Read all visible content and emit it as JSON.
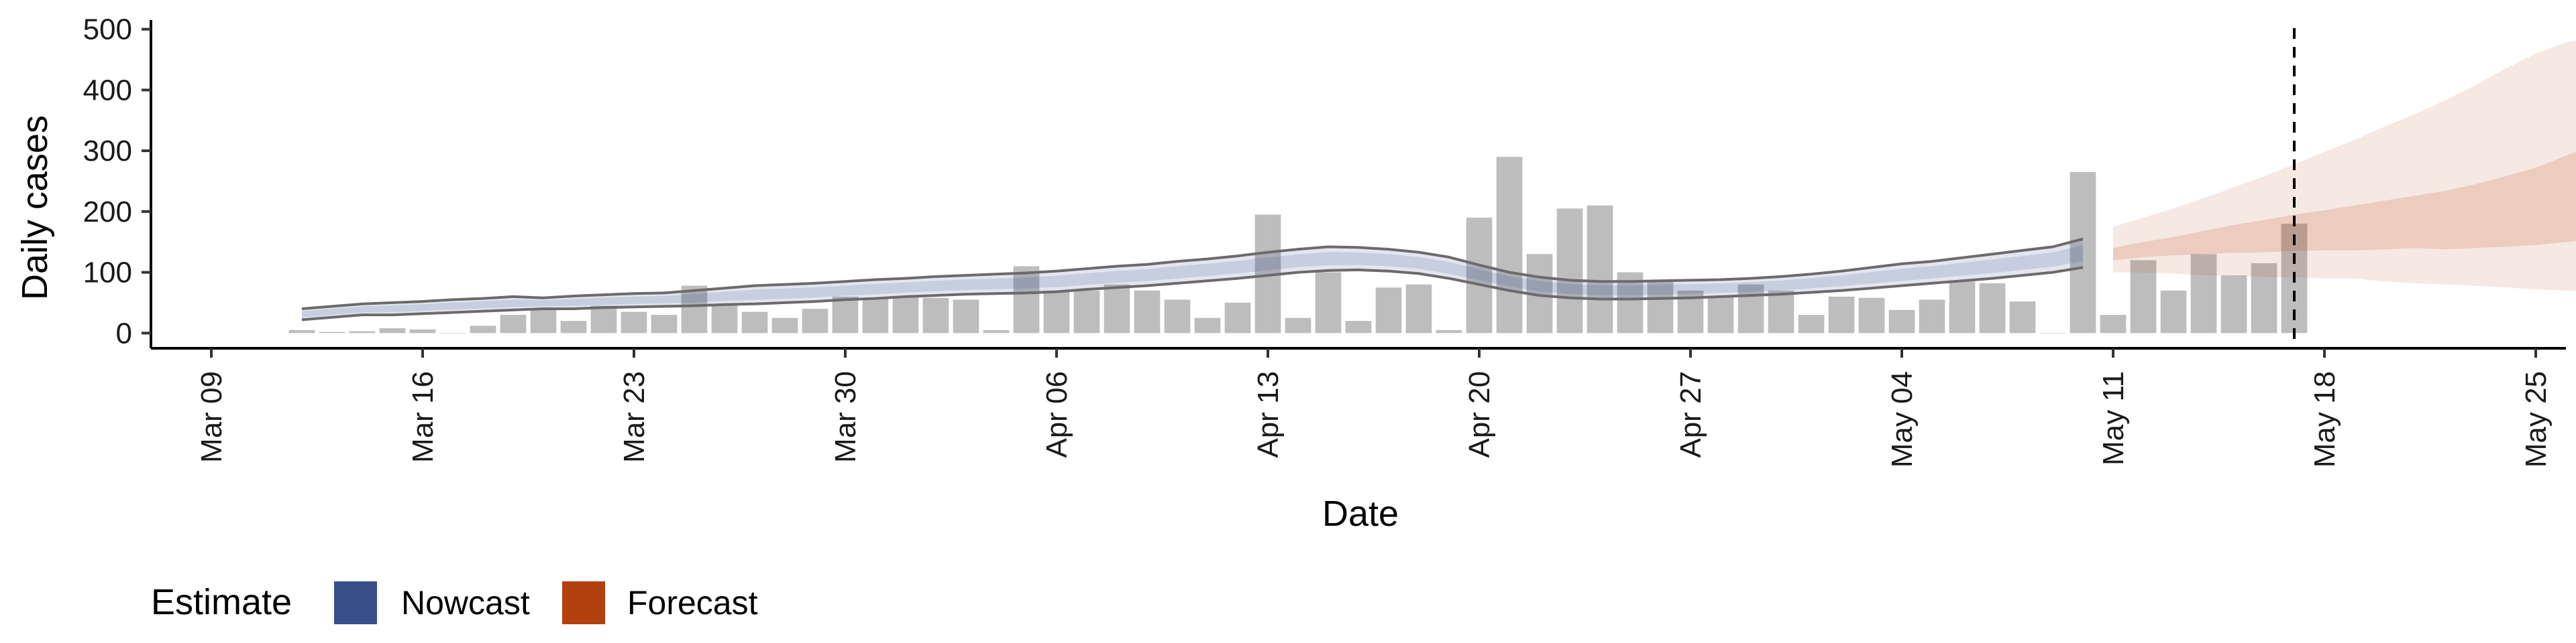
{
  "chart_data": {
    "type": "bar",
    "xlabel": "Date",
    "ylabel": "Daily cases",
    "x_range": [
      "2020-03-07",
      "2020-05-26"
    ],
    "ylim": [
      -25,
      515
    ],
    "y_ticks": [
      0,
      100,
      200,
      300,
      400,
      500
    ],
    "x_ticks": [
      {
        "date": "2020-03-09",
        "label": "Mar 09"
      },
      {
        "date": "2020-03-16",
        "label": "Mar 16"
      },
      {
        "date": "2020-03-23",
        "label": "Mar 23"
      },
      {
        "date": "2020-03-30",
        "label": "Mar 30"
      },
      {
        "date": "2020-04-06",
        "label": "Apr 06"
      },
      {
        "date": "2020-04-13",
        "label": "Apr 13"
      },
      {
        "date": "2020-04-20",
        "label": "Apr 20"
      },
      {
        "date": "2020-04-27",
        "label": "Apr 27"
      },
      {
        "date": "2020-05-04",
        "label": "May 04"
      },
      {
        "date": "2020-05-11",
        "label": "May 11"
      },
      {
        "date": "2020-05-18",
        "label": "May 18"
      },
      {
        "date": "2020-05-25",
        "label": "May 25"
      }
    ],
    "grid": false,
    "legend_position": "bottom-left",
    "bars": {
      "start_date": "2020-03-12",
      "color": "#bdbdbd",
      "values": [
        5,
        2,
        3,
        8,
        6,
        0,
        12,
        30,
        40,
        20,
        45,
        35,
        30,
        78,
        45,
        35,
        25,
        40,
        60,
        58,
        60,
        58,
        55,
        5,
        110,
        70,
        70,
        80,
        70,
        55,
        25,
        50,
        195,
        25,
        100,
        20,
        75,
        80,
        5,
        190,
        290,
        130,
        205,
        210,
        100,
        85,
        70,
        60,
        80,
        70,
        30,
        60,
        58,
        38,
        55,
        85,
        82,
        52,
        0,
        265,
        30,
        120,
        70,
        130,
        95,
        115,
        180
      ]
    },
    "nowcast": {
      "start_date": "2020-03-12",
      "color": "#3a4e8c",
      "lower": [
        22,
        26,
        30,
        30,
        32,
        34,
        36,
        38,
        40,
        40,
        42,
        43,
        44,
        45,
        47,
        48,
        50,
        52,
        55,
        57,
        60,
        62,
        64,
        65,
        66,
        68,
        72,
        75,
        78,
        82,
        86,
        90,
        95,
        100,
        103,
        104,
        102,
        98,
        90,
        80,
        70,
        62,
        58,
        56,
        56,
        57,
        58,
        60,
        62,
        64,
        67,
        70,
        74,
        78,
        82,
        86,
        90,
        95,
        100,
        108
      ],
      "upper": [
        40,
        44,
        48,
        50,
        52,
        55,
        57,
        60,
        58,
        61,
        63,
        65,
        66,
        70,
        74,
        78,
        80,
        82,
        85,
        88,
        90,
        93,
        95,
        97,
        99,
        102,
        106,
        110,
        113,
        118,
        122,
        127,
        133,
        138,
        142,
        141,
        138,
        133,
        125,
        112,
        100,
        92,
        87,
        85,
        85,
        86,
        87,
        88,
        90,
        93,
        97,
        102,
        108,
        114,
        118,
        124,
        130,
        136,
        142,
        155
      ]
    },
    "forecast": {
      "start_date": "2020-05-11",
      "color": "#b5400f",
      "outer_lower": [
        100,
        100,
        98,
        95,
        95,
        92,
        92,
        90,
        90,
        85,
        82,
        80,
        78,
        75,
        72,
        70,
        68
      ],
      "outer_upper": [
        175,
        190,
        205,
        222,
        240,
        258,
        278,
        298,
        318,
        340,
        360,
        383,
        408,
        435,
        460,
        478,
        490
      ],
      "inner_lower": [
        120,
        125,
        128,
        130,
        132,
        133,
        135,
        136,
        136,
        138,
        140,
        138,
        140,
        142,
        145,
        150,
        155
      ],
      "inner_upper": [
        140,
        150,
        158,
        168,
        178,
        186,
        195,
        202,
        210,
        218,
        226,
        234,
        245,
        258,
        272,
        292,
        310
      ]
    },
    "reference_line": {
      "date": "2020-05-17"
    },
    "legend": {
      "title": "Estimate",
      "items": [
        {
          "label": "Nowcast",
          "color": "#3a4e8c"
        },
        {
          "label": "Forecast",
          "color": "#b5400f"
        }
      ]
    }
  }
}
